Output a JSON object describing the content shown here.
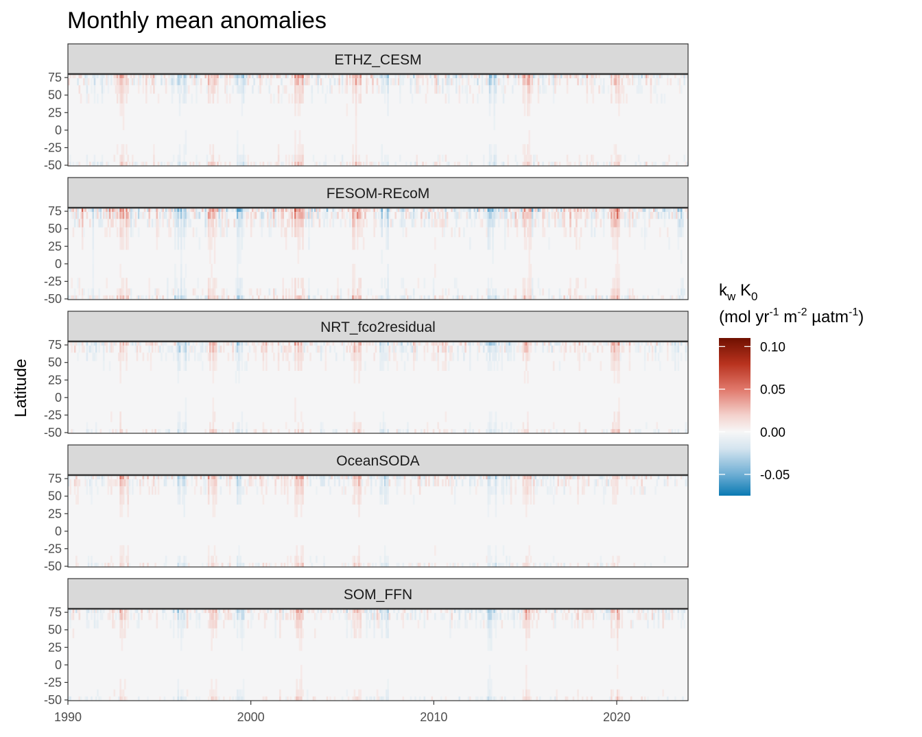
{
  "chart_data": {
    "type": "heatmap",
    "title": "Monthly mean anomalies",
    "xlabel": "",
    "ylabel": "Latitude",
    "xlim": [
      1990,
      2023.9
    ],
    "ylim": [
      -51,
      80
    ],
    "x_ticks": [
      1990,
      2000,
      2010,
      2020
    ],
    "y_ticks": [
      75,
      50,
      25,
      0,
      -25,
      -50
    ],
    "grid": false,
    "facets": [
      "ETHZ_CESM",
      "FESOM-REcoM",
      "NRT_fco2residual",
      "OceanSODA",
      "SOM_FFN"
    ],
    "facet_intensity": [
      0.75,
      1.0,
      0.65,
      0.6,
      0.6
    ],
    "colorbar": {
      "title_parts": {
        "k": "k",
        "k_sub": "w",
        "K": "K",
        "K_sub": "0",
        "unit_open": "(mol yr",
        "unit_exp1": "-1",
        "unit_m": " m",
        "unit_exp2": "-2",
        "unit_uatm": " µatm",
        "unit_exp3": "-1",
        "unit_close": ")"
      },
      "range": [
        -0.075,
        0.11
      ],
      "ticks": [
        0.1,
        0.05,
        0.0,
        -0.05
      ],
      "tick_labels": [
        "0.10",
        "0.05",
        "0.00",
        "-0.05"
      ],
      "colors": [
        "#0a7ab3",
        "#6eaed4",
        "#d4e4ef",
        "#f7f7f7",
        "#f3d0cb",
        "#e0776a",
        "#b8321e",
        "#6f1000"
      ],
      "placement": "right"
    },
    "strong_positive_years": [
      1993.1,
      1997.9,
      2002.6,
      2005.8,
      2015.1,
      2019.9
    ],
    "strong_negative_years": [
      1996.2,
      1999.4,
      2007.3,
      2013.2
    ]
  }
}
